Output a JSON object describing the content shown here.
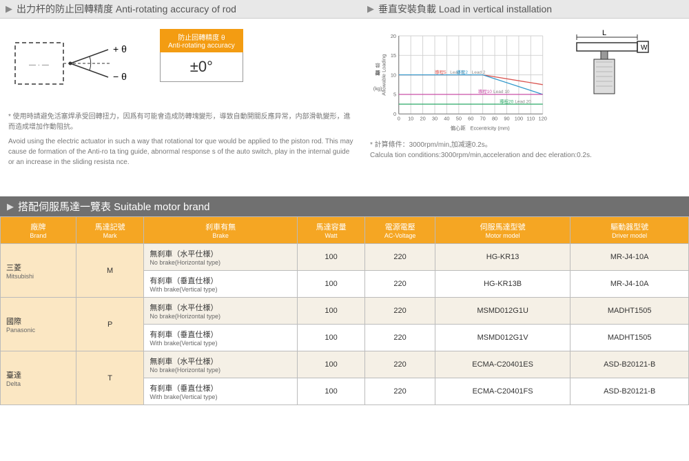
{
  "left_panel": {
    "title": "出力杆的防止回轉精度 Anti-rotating accuracy of rod",
    "theta_plus": "+ θ",
    "theta_minus": "− θ",
    "accuracy_header_cn": "防止回轉精度 θ",
    "accuracy_header_en": "Anti-rotating accuracy",
    "accuracy_value": "±0°",
    "note_cn": "* 使用時請避免活塞焊承受回轉扭力，因爲有可能會造成防轉塊變形，導致自動開關反應异常，内部滑軌變形，進而造成增加作動阻抗。",
    "note_en": "Avoid using the electric actuator in such a way that rotational tor que would be applied to the piston rod. This may cause de formation of the Anti-ro ta ting guide, abnormal response s of the auto switch, play in the internal guide or an increase in the sliding resista nce."
  },
  "right_panel": {
    "title": "垂直安裝負載 Load in vertical installation",
    "chart": {
      "type": "line",
      "ylabel_cn": "容許荷重",
      "ylabel_unit": "(kg)",
      "ylabel_en": "Allowable Loading",
      "xlabel_cn": "偏心距",
      "xlabel_en": "Eccentricity  (mm)",
      "ylim": [
        0,
        20
      ],
      "ytick_step": 5,
      "xlim": [
        0,
        120
      ],
      "xtick_step": 10,
      "grid_color": "#d0d0d0",
      "series": [
        {
          "name_cn": "導程5",
          "name_en": "Lead 5",
          "color": "#d9534f",
          "y0": 10,
          "y1": 7.5
        },
        {
          "name_cn": "導程2",
          "name_en": "Lead 2",
          "color": "#3399cc",
          "y0": 10,
          "y1": 5
        },
        {
          "name_cn": "導程10",
          "name_en": "Lead 10",
          "color": "#c94fa8",
          "y0": 5,
          "y1": 5
        },
        {
          "name_cn": "導程20",
          "name_en": "Lead 20",
          "color": "#2aa866",
          "y0": 2.5,
          "y1": 2.5
        }
      ]
    },
    "bracket": {
      "L": "L",
      "W": "W"
    },
    "note_cn": "* 計算條件：3000rpm/min,加减速0.2s。",
    "note_en": "Calcula tion conditions:3000rpm/min,acceleration and dec eleration:0.2s."
  },
  "motor_section": {
    "title": "搭配伺服馬達一覽表 Suitable motor brand",
    "columns": [
      {
        "cn": "廠牌",
        "en": "Brand"
      },
      {
        "cn": "馬達記號",
        "en": "Mark"
      },
      {
        "cn": "刹車有無",
        "en": "Brake"
      },
      {
        "cn": "馬達容量",
        "en": "Watt"
      },
      {
        "cn": "電源電壓",
        "en": "AC-Voltage"
      },
      {
        "cn": "伺服馬達型號",
        "en": "Motor model"
      },
      {
        "cn": "驅動器型號",
        "en": "Driver model"
      }
    ],
    "brake_no_cn": "無刹車（水平仕様）",
    "brake_no_en": "No brake(Horizontal type)",
    "brake_yes_cn": "有刹車（垂直仕様）",
    "brake_yes_en": "With brake(Vertical type)",
    "brands": [
      {
        "cn": "三菱",
        "en": "Mitsubishi",
        "mark": "M",
        "rows": [
          {
            "brake": "no",
            "watt": "100",
            "volt": "220",
            "motor": "HG-KR13",
            "driver": "MR-J4-10A"
          },
          {
            "brake": "yes",
            "watt": "100",
            "volt": "220",
            "motor": "HG-KR13B",
            "driver": "MR-J4-10A"
          }
        ]
      },
      {
        "cn": "國際",
        "en": "Panasonic",
        "mark": "P",
        "rows": [
          {
            "brake": "no",
            "watt": "100",
            "volt": "220",
            "motor": "MSMD012G1U",
            "driver": "MADHT1505"
          },
          {
            "brake": "yes",
            "watt": "100",
            "volt": "220",
            "motor": "MSMD012G1V",
            "driver": "MADHT1505"
          }
        ]
      },
      {
        "cn": "臺達",
        "en": "Delta",
        "mark": "T",
        "rows": [
          {
            "brake": "no",
            "watt": "100",
            "volt": "220",
            "motor": "ECMA-C20401ES",
            "driver": "ASD-B20121-B"
          },
          {
            "brake": "yes",
            "watt": "100",
            "volt": "220",
            "motor": "ECMA-C20401FS",
            "driver": "ASD-B20121-B"
          }
        ]
      }
    ]
  }
}
